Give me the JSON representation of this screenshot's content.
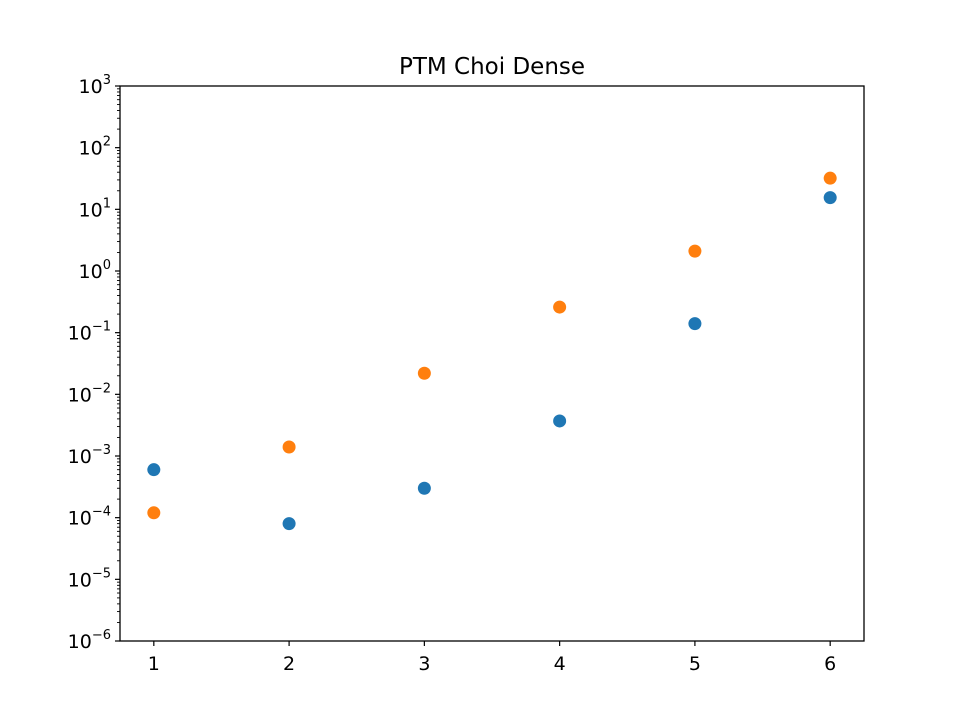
{
  "chart_data": {
    "type": "scatter",
    "title": "PTM Choi Dense",
    "xlabel": "",
    "ylabel": "",
    "x_scale": "linear",
    "y_scale": "log",
    "xlim": [
      0.75,
      6.25
    ],
    "ylim": [
      1e-06,
      1000
    ],
    "x_ticks": [
      1,
      2,
      3,
      4,
      5,
      6
    ],
    "x_tick_labels": [
      "1",
      "2",
      "3",
      "4",
      "5",
      "6"
    ],
    "y_tick_exponents": [
      -6,
      -5,
      -4,
      -3,
      -2,
      -1,
      0,
      1,
      2,
      3
    ],
    "y_tick_base": "10",
    "grid": false,
    "legend": null,
    "series": [
      {
        "color": "#1f77b4",
        "x": [
          1,
          2,
          3,
          4,
          5,
          6
        ],
        "y": [
          0.0006,
          8e-05,
          0.0003,
          0.0037,
          0.14,
          15.5
        ]
      },
      {
        "color": "#ff7f0e",
        "x": [
          1,
          2,
          3,
          4,
          5,
          6
        ],
        "y": [
          0.00012,
          0.0014,
          0.022,
          0.26,
          2.1,
          32
        ]
      }
    ]
  }
}
